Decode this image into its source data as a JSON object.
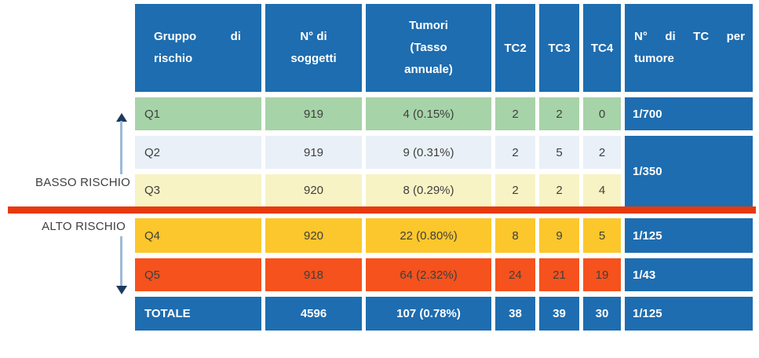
{
  "header": {
    "col1": {
      "line1": "Gruppo di",
      "line2": "rischio"
    },
    "col2": {
      "line1": "N° di",
      "line2": "soggetti"
    },
    "col3": {
      "line1": "Tumori",
      "line2": "(Tasso",
      "line3": "annuale)"
    },
    "col4": "TC2",
    "col5": "TC3",
    "col6": "TC4",
    "col7": {
      "line1": "N° di TC per",
      "line2": "tumore"
    }
  },
  "rows": [
    {
      "gruppo": "Q1",
      "soggetti": "919",
      "tumori": "4 (0.15%)",
      "tc2": "2",
      "tc3": "2",
      "tc4": "0",
      "tc_per_tumore": "1/700"
    },
    {
      "gruppo": "Q2",
      "soggetti": "919",
      "tumori": "9 (0.31%)",
      "tc2": "2",
      "tc3": "5",
      "tc4": "2"
    },
    {
      "gruppo": "Q3",
      "soggetti": "920",
      "tumori": "8 (0.29%)",
      "tc2": "2",
      "tc3": "2",
      "tc4": "4"
    },
    {
      "gruppo": "Q4",
      "soggetti": "920",
      "tumori": "22 (0.80%)",
      "tc2": "8",
      "tc3": "9",
      "tc4": "5",
      "tc_per_tumore": "1/125"
    },
    {
      "gruppo": "Q5",
      "soggetti": "918",
      "tumori": "64 (2.32%)",
      "tc2": "24",
      "tc3": "21",
      "tc4": "19",
      "tc_per_tumore": "1/43"
    }
  ],
  "merged": {
    "q2_q3_tc_per_tumore": "1/350"
  },
  "total_row": {
    "gruppo": "TOTALE",
    "soggetti": "4596",
    "tumori": "107 (0.78%)",
    "tc2": "38",
    "tc3": "39",
    "tc4": "30",
    "tc_per_tumore": "1/125"
  },
  "annotations": {
    "low_risk_label": "BASSO RISCHIO",
    "high_risk_label": "ALTO RISCHIO"
  },
  "colors": {
    "header_blue": "#1E6DB0",
    "row_q1_green": "#A7D3A8",
    "row_q2_pale_blue": "#E9F0F8",
    "row_q3_cream": "#F8F3C4",
    "row_q4_gold": "#FCC72C",
    "row_q5_orange": "#F5521D",
    "divider_red": "#E8390C",
    "arrow_shaft": "#9DBAD7",
    "arrow_head": "#1E3A5F",
    "data_text": "#3F3F3F"
  },
  "chart_data": {
    "type": "table",
    "title": "Tumori e TC per gruppo di rischio",
    "columns": [
      "Gruppo di rischio",
      "N° di soggetti",
      "Tumori (Tasso annuale)",
      "TC2",
      "TC3",
      "TC4",
      "N° di TC per tumore"
    ],
    "rows": [
      [
        "Q1",
        919,
        "4 (0.15%)",
        2,
        2,
        0,
        "1/700"
      ],
      [
        "Q2",
        919,
        "9 (0.31%)",
        2,
        5,
        2,
        "1/350"
      ],
      [
        "Q3",
        920,
        "8 (0.29%)",
        2,
        2,
        4,
        "1/350"
      ],
      [
        "Q4",
        920,
        "22 (0.80%)",
        8,
        9,
        5,
        "1/125"
      ],
      [
        "Q5",
        918,
        "64 (2.32%)",
        24,
        21,
        19,
        "1/43"
      ],
      [
        "TOTALE",
        4596,
        "107 (0.78%)",
        38,
        39,
        30,
        "1/125"
      ]
    ],
    "merged_cells": [
      {
        "value": "1/350",
        "column": "N° di TC per tumore",
        "spans_rows": [
          "Q2",
          "Q3"
        ]
      }
    ],
    "row_group_labels": [
      {
        "label": "BASSO RISCHIO",
        "rows": [
          "Q1",
          "Q2",
          "Q3"
        ]
      },
      {
        "label": "ALTO RISCHIO",
        "rows": [
          "Q4",
          "Q5"
        ]
      }
    ]
  }
}
